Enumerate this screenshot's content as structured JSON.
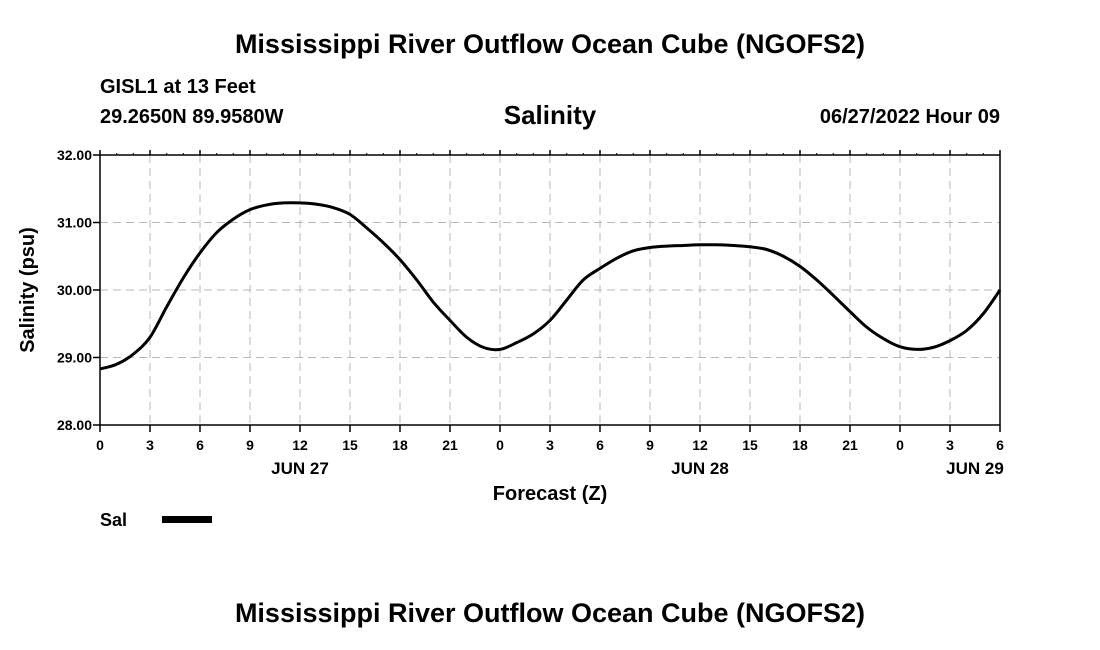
{
  "header": {
    "title": "Mississippi River Outflow Ocean Cube (NGOFS2)",
    "station": "GISL1 at 13 Feet",
    "coordinates": "29.2650N  89.9580W",
    "datetime": "06/27/2022 Hour 09"
  },
  "footer": {
    "title": "Mississippi River Outflow Ocean Cube (NGOFS2)"
  },
  "chart_data": {
    "type": "line",
    "title": "Salinity",
    "xlabel": "Forecast (Z)",
    "ylabel": "Salinity (psu)",
    "ylim": [
      28.0,
      32.0
    ],
    "xlim": [
      0,
      54
    ],
    "y_ticks": [
      "28.00",
      "29.00",
      "30.00",
      "31.00",
      "32.00"
    ],
    "x_tick_labels": [
      "0",
      "3",
      "6",
      "9",
      "12",
      "15",
      "18",
      "21",
      "0",
      "3",
      "6",
      "9",
      "12",
      "15",
      "18",
      "21",
      "0",
      "3",
      "6"
    ],
    "date_labels": [
      {
        "label": "JUN 27",
        "at_hour": 12
      },
      {
        "label": "JUN 28",
        "at_hour": 36
      },
      {
        "label": "JUN 29",
        "at_hour": 52.5
      }
    ],
    "grid": true,
    "legend": {
      "placement": "bottom-left",
      "entries": [
        "Sal"
      ]
    },
    "series": [
      {
        "name": "Sal",
        "color": "#000000",
        "x": [
          0,
          1,
          2,
          3,
          4,
          5,
          6,
          7,
          8,
          9,
          10,
          11,
          12,
          13,
          14,
          15,
          16,
          17,
          18,
          19,
          20,
          21,
          22,
          23,
          24,
          25,
          26,
          27,
          28,
          29,
          30,
          31,
          32,
          33,
          34,
          35,
          36,
          37,
          38,
          39,
          40,
          41,
          42,
          43,
          44,
          45,
          46,
          47,
          48,
          49,
          50,
          51,
          52,
          53,
          54
        ],
        "values": [
          28.83,
          28.9,
          29.05,
          29.3,
          29.75,
          30.18,
          30.55,
          30.85,
          31.05,
          31.19,
          31.26,
          31.29,
          31.29,
          31.27,
          31.22,
          31.12,
          30.92,
          30.7,
          30.45,
          30.15,
          29.82,
          29.55,
          29.3,
          29.15,
          29.12,
          29.22,
          29.35,
          29.55,
          29.85,
          30.15,
          30.32,
          30.47,
          30.58,
          30.63,
          30.65,
          30.66,
          30.67,
          30.67,
          30.66,
          30.64,
          30.6,
          30.5,
          30.35,
          30.15,
          29.92,
          29.68,
          29.45,
          29.28,
          29.16,
          29.12,
          29.15,
          29.25,
          29.4,
          29.65,
          30.0
        ]
      }
    ]
  }
}
